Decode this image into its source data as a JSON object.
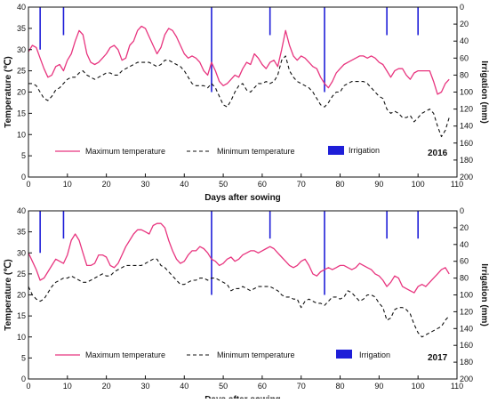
{
  "colors": {
    "max": "#e8357f",
    "min": "#111111",
    "irrigation": "#1e1ed8",
    "axis": "#111111"
  },
  "chart_data": [
    {
      "type": "line",
      "xlabel": "Days after sowing",
      "ylabel": "Temperature (℃)",
      "y2label": "Irrigation (mm)",
      "xlim": [
        0,
        110
      ],
      "ylim": [
        0,
        40
      ],
      "y2lim": [
        0,
        200
      ],
      "y2_inverted": true,
      "xticks": [
        "0",
        "10",
        "20",
        "30",
        "40",
        "50",
        "60",
        "70",
        "80",
        "90",
        "100",
        "110"
      ],
      "yticks": [
        "0",
        "5",
        "10",
        "15",
        "20",
        "25",
        "30",
        "35",
        "40"
      ],
      "y2ticks": [
        "0",
        "20",
        "40",
        "60",
        "80",
        "100",
        "120",
        "140",
        "160",
        "180",
        "200"
      ],
      "legend_placement": "bottom",
      "annotation": "2016",
      "series": [
        {
          "name": "Maximum temperature",
          "kind": "line",
          "x": [
            0,
            1,
            2,
            3,
            4,
            5,
            6,
            7,
            8,
            9,
            10,
            11,
            12,
            13,
            14,
            15,
            16,
            17,
            18,
            19,
            20,
            21,
            22,
            23,
            24,
            25,
            26,
            27,
            28,
            29,
            30,
            31,
            32,
            33,
            34,
            35,
            36,
            37,
            38,
            39,
            40,
            41,
            42,
            43,
            44,
            45,
            46,
            47,
            48,
            49,
            50,
            51,
            52,
            53,
            54,
            55,
            56,
            57,
            58,
            59,
            60,
            61,
            62,
            63,
            64,
            65,
            66,
            67,
            68,
            69,
            70,
            71,
            72,
            73,
            74,
            75,
            76,
            77,
            78,
            79,
            80,
            81,
            82,
            83,
            84,
            85,
            86,
            87,
            88,
            89,
            90,
            91,
            92,
            93,
            94,
            95,
            96,
            97,
            98,
            99,
            100,
            101,
            102,
            103,
            104,
            105,
            106,
            107,
            108
          ],
          "values": [
            29.5,
            31,
            30.5,
            28,
            25.5,
            23.5,
            24,
            26,
            26.5,
            25,
            27.5,
            29,
            32,
            34.5,
            33.5,
            29,
            27,
            26.5,
            27,
            28,
            29,
            30.5,
            31,
            30,
            27.5,
            28,
            31,
            32,
            34.5,
            35.5,
            35,
            33,
            31,
            29,
            30.5,
            33.5,
            35,
            34.5,
            33,
            31,
            29,
            28,
            28.5,
            28,
            27,
            25,
            24,
            27,
            25,
            22.5,
            21.5,
            22,
            23,
            24,
            23.5,
            25.5,
            27,
            26.5,
            29,
            28,
            26.5,
            25.5,
            27,
            27.5,
            26,
            30,
            34.5,
            31,
            28.5,
            27.5,
            28.5,
            28,
            27,
            26,
            25.5,
            23.5,
            22,
            21,
            22.5,
            24.5,
            25.5,
            26.5,
            27,
            27.5,
            28,
            28.5,
            28.5,
            28,
            28.5,
            28,
            27,
            26.5,
            25,
            23.5,
            25,
            25.5,
            25.5,
            24,
            23,
            24.5,
            25,
            25,
            25,
            25,
            22.5,
            19.5,
            20,
            22,
            23
          ]
        },
        {
          "name": "Minimum temperature",
          "kind": "line",
          "x": [
            0,
            1,
            2,
            3,
            4,
            5,
            6,
            7,
            8,
            9,
            10,
            11,
            12,
            13,
            14,
            15,
            16,
            17,
            18,
            19,
            20,
            21,
            22,
            23,
            24,
            25,
            26,
            27,
            28,
            29,
            30,
            31,
            32,
            33,
            34,
            35,
            36,
            37,
            38,
            39,
            40,
            41,
            42,
            43,
            44,
            45,
            46,
            47,
            48,
            49,
            50,
            51,
            52,
            53,
            54,
            55,
            56,
            57,
            58,
            59,
            60,
            61,
            62,
            63,
            64,
            65,
            66,
            67,
            68,
            69,
            70,
            71,
            72,
            73,
            74,
            75,
            76,
            77,
            78,
            79,
            80,
            81,
            82,
            83,
            84,
            85,
            86,
            87,
            88,
            89,
            90,
            91,
            92,
            93,
            94,
            95,
            96,
            97,
            98,
            99,
            100,
            101,
            102,
            103,
            104,
            105,
            106,
            107,
            108
          ],
          "values": [
            22,
            22,
            21.5,
            20,
            18.5,
            18,
            19,
            20.5,
            21,
            22,
            23,
            23.5,
            23.5,
            24.5,
            25,
            24,
            23.5,
            23,
            23.5,
            24,
            24.5,
            24.5,
            24,
            24,
            25,
            25.5,
            26,
            26.5,
            27,
            27,
            27,
            27,
            26.5,
            26,
            26.5,
            27.5,
            27.5,
            27,
            26.5,
            26,
            25,
            23.5,
            22,
            21.5,
            21.5,
            21.5,
            21,
            22,
            21,
            19,
            17,
            16.5,
            18,
            20,
            21.5,
            22,
            20.5,
            20,
            21,
            22,
            22,
            22.5,
            22,
            22.5,
            24,
            27.5,
            28.5,
            25,
            23.5,
            22.5,
            22,
            21.5,
            21,
            20,
            18.5,
            17,
            16.5,
            17.5,
            19,
            20,
            20,
            21.5,
            22,
            22.5,
            22.5,
            22.5,
            22.5,
            22,
            21,
            20,
            19,
            18.5,
            16,
            15,
            15.5,
            15,
            14,
            14,
            14.5,
            13,
            14,
            15,
            15.5,
            16,
            15,
            12,
            9.5,
            11,
            14
          ]
        },
        {
          "name": "Irrigation",
          "kind": "bar",
          "axis": "right",
          "x": [
            3,
            9,
            47,
            62,
            76,
            92,
            100
          ],
          "values": [
            50,
            33,
            100,
            33,
            100,
            33,
            33
          ]
        }
      ]
    },
    {
      "type": "line",
      "xlabel": "Days after sowing",
      "ylabel": "Temperature (℃)",
      "y2label": "Irrigation (mm)",
      "xlim": [
        0,
        110
      ],
      "ylim": [
        0,
        40
      ],
      "y2lim": [
        0,
        200
      ],
      "y2_inverted": true,
      "xticks": [
        "0",
        "10",
        "20",
        "30",
        "40",
        "50",
        "60",
        "70",
        "80",
        "90",
        "100",
        "110"
      ],
      "yticks": [
        "0",
        "5",
        "10",
        "15",
        "20",
        "25",
        "30",
        "35",
        "40"
      ],
      "y2ticks": [
        "0",
        "20",
        "40",
        "60",
        "80",
        "100",
        "120",
        "140",
        "160",
        "180",
        "200"
      ],
      "legend_placement": "bottom",
      "annotation": "2017",
      "series": [
        {
          "name": "Maximum temperature",
          "kind": "line",
          "x": [
            0,
            1,
            2,
            3,
            4,
            5,
            6,
            7,
            8,
            9,
            10,
            11,
            12,
            13,
            14,
            15,
            16,
            17,
            18,
            19,
            20,
            21,
            22,
            23,
            24,
            25,
            26,
            27,
            28,
            29,
            30,
            31,
            32,
            33,
            34,
            35,
            36,
            37,
            38,
            39,
            40,
            41,
            42,
            43,
            44,
            45,
            46,
            47,
            48,
            49,
            50,
            51,
            52,
            53,
            54,
            55,
            56,
            57,
            58,
            59,
            60,
            61,
            62,
            63,
            64,
            65,
            66,
            67,
            68,
            69,
            70,
            71,
            72,
            73,
            74,
            75,
            76,
            77,
            78,
            79,
            80,
            81,
            82,
            83,
            84,
            85,
            86,
            87,
            88,
            89,
            90,
            91,
            92,
            93,
            94,
            95,
            96,
            97,
            98,
            99,
            100,
            101,
            102,
            103,
            104,
            105,
            106,
            107,
            108
          ],
          "values": [
            30,
            28,
            26,
            23.5,
            24,
            25.5,
            27,
            28.5,
            28,
            27.5,
            29.5,
            33,
            34.5,
            33,
            30,
            27,
            27,
            27.5,
            29.5,
            29.5,
            29,
            27,
            26.5,
            27.5,
            29.5,
            31.5,
            33,
            34.5,
            35.5,
            35.5,
            35,
            34.5,
            36.5,
            37,
            37,
            36,
            33,
            30.5,
            28.5,
            27.5,
            28,
            29.5,
            30.5,
            30.5,
            31.5,
            31,
            30,
            28.5,
            28,
            27,
            27.5,
            28.5,
            29,
            28,
            28.5,
            29.5,
            30,
            30.5,
            30.5,
            30,
            30.5,
            31,
            31.5,
            31,
            30,
            29,
            28,
            27,
            26.5,
            27,
            28,
            28.5,
            27,
            25,
            24.5,
            25.5,
            26,
            26.5,
            26,
            26.5,
            27,
            27,
            26.5,
            26,
            26.5,
            27.5,
            27,
            26.5,
            26,
            25,
            24.5,
            23.5,
            22,
            23,
            24.5,
            24,
            22,
            21.5,
            21,
            20.5,
            22,
            22.5,
            22,
            23,
            24,
            25,
            26,
            26.5,
            25
          ]
        },
        {
          "name": "Minimum temperature",
          "kind": "line",
          "x": [
            0,
            1,
            2,
            3,
            4,
            5,
            6,
            7,
            8,
            9,
            10,
            11,
            12,
            13,
            14,
            15,
            16,
            17,
            18,
            19,
            20,
            21,
            22,
            23,
            24,
            25,
            26,
            27,
            28,
            29,
            30,
            31,
            32,
            33,
            34,
            35,
            36,
            37,
            38,
            39,
            40,
            41,
            42,
            43,
            44,
            45,
            46,
            47,
            48,
            49,
            50,
            51,
            52,
            53,
            54,
            55,
            56,
            57,
            58,
            59,
            60,
            61,
            62,
            63,
            64,
            65,
            66,
            67,
            68,
            69,
            70,
            71,
            72,
            73,
            74,
            75,
            76,
            77,
            78,
            79,
            80,
            81,
            82,
            83,
            84,
            85,
            86,
            87,
            88,
            89,
            90,
            91,
            92,
            93,
            94,
            95,
            96,
            97,
            98,
            99,
            100,
            101,
            102,
            103,
            104,
            105,
            106,
            107,
            108
          ],
          "values": [
            22,
            20,
            19,
            18.5,
            19,
            20.5,
            22,
            23,
            23.5,
            24,
            24,
            24.5,
            24,
            23.5,
            23,
            23,
            23.5,
            24,
            24.5,
            25,
            24.5,
            24.5,
            25.5,
            26,
            26.5,
            27,
            27,
            27,
            27,
            27,
            27.5,
            28,
            28.5,
            28.5,
            27,
            26.5,
            25.5,
            24.5,
            23.5,
            22.5,
            22.5,
            23,
            23.5,
            23.5,
            24,
            24,
            23.5,
            24,
            24,
            23.5,
            23,
            22.5,
            21,
            21.5,
            21.5,
            22,
            21.5,
            21,
            21.5,
            22,
            22,
            22,
            22,
            21.5,
            21,
            20,
            19.5,
            19.5,
            19,
            19,
            17,
            18.5,
            19,
            18.5,
            18,
            18,
            17.5,
            18.5,
            19.5,
            19.5,
            19,
            19.5,
            21,
            20.5,
            19.5,
            18.5,
            19,
            20,
            20,
            19.5,
            18,
            17,
            14,
            14.5,
            16.5,
            17,
            17,
            16.5,
            15.5,
            13,
            11,
            10,
            10.5,
            11,
            11.5,
            12,
            12.5,
            14,
            15
          ]
        },
        {
          "name": "Irrigation",
          "kind": "bar",
          "axis": "right",
          "x": [
            3,
            9,
            47,
            62,
            76,
            92,
            100
          ],
          "values": [
            50,
            33,
            100,
            33,
            100,
            33,
            33
          ]
        }
      ]
    }
  ]
}
